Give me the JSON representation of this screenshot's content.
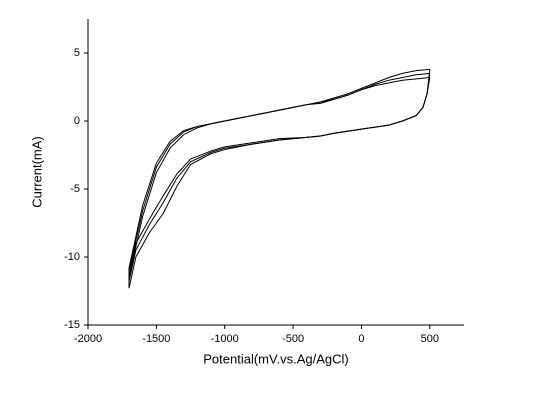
{
  "chart_data": {
    "type": "line",
    "xlabel": "Potential(mV.vs.Ag/AgCl)",
    "ylabel": "Current(mA)",
    "xlim": [
      -2000,
      750
    ],
    "xticks": [
      -2000,
      -1500,
      -1000,
      -500,
      0,
      500
    ],
    "ylim": [
      -15,
      7.5
    ],
    "yticks": [
      -15,
      -10,
      -5,
      0,
      5
    ],
    "series": [
      {
        "color": "#000000",
        "x": [
          500,
          400,
          300,
          200,
          100,
          0,
          -100,
          -200,
          -300,
          -400,
          -500,
          -600,
          -700,
          -800,
          -900,
          -1000,
          -1100,
          -1200,
          -1300,
          -1400,
          -1500,
          -1600,
          -1700,
          -1700,
          -1650,
          -1550,
          -1450,
          -1350,
          -1250,
          -1100,
          -1000,
          -800,
          -600,
          -400,
          -300,
          -200,
          0,
          200,
          300,
          400,
          450,
          480,
          500
        ],
        "values": [
          3.8,
          3.7,
          3.5,
          3.2,
          2.8,
          2.4,
          2.0,
          1.7,
          1.4,
          1.2,
          1.0,
          0.8,
          0.6,
          0.4,
          0.2,
          0.0,
          -0.2,
          -0.5,
          -1.0,
          -2.0,
          -3.8,
          -7.0,
          -11.5,
          -12.3,
          -10.0,
          -8.2,
          -6.8,
          -4.8,
          -3.2,
          -2.4,
          -2.1,
          -1.7,
          -1.4,
          -1.2,
          -1.1,
          -0.9,
          -0.6,
          -0.3,
          0.0,
          0.4,
          1.0,
          2.0,
          3.8
        ]
      },
      {
        "color": "#000000",
        "x": [
          500,
          400,
          300,
          200,
          100,
          0,
          -100,
          -200,
          -300,
          -400,
          -500,
          -600,
          -700,
          -800,
          -900,
          -1000,
          -1100,
          -1200,
          -1300,
          -1400,
          -1500,
          -1600,
          -1700,
          -1700,
          -1650,
          -1550,
          -1450,
          -1350,
          -1250,
          -1100,
          -1000,
          -800,
          -600,
          -400,
          -300,
          -200,
          0,
          200,
          300,
          400,
          450,
          480,
          500
        ],
        "values": [
          3.5,
          3.4,
          3.2,
          3.0,
          2.7,
          2.3,
          1.9,
          1.6,
          1.4,
          1.2,
          1.0,
          0.8,
          0.6,
          0.4,
          0.2,
          0.0,
          -0.2,
          -0.4,
          -0.8,
          -1.7,
          -3.4,
          -6.6,
          -11.0,
          -11.8,
          -9.5,
          -7.6,
          -6.0,
          -4.2,
          -3.0,
          -2.3,
          -2.0,
          -1.7,
          -1.4,
          -1.2,
          -1.1,
          -0.9,
          -0.6,
          -0.3,
          0.0,
          0.4,
          1.0,
          2.0,
          3.5
        ]
      },
      {
        "color": "#000000",
        "x": [
          500,
          400,
          300,
          200,
          100,
          0,
          -100,
          -200,
          -300,
          -400,
          -500,
          -600,
          -700,
          -800,
          -900,
          -1000,
          -1100,
          -1200,
          -1300,
          -1400,
          -1500,
          -1600,
          -1700,
          -1700,
          -1650,
          -1550,
          -1450,
          -1350,
          -1250,
          -1100,
          -1000,
          -800,
          -600,
          -400,
          -300,
          -200,
          0,
          200,
          300,
          400,
          450,
          480,
          500
        ],
        "values": [
          3.2,
          3.1,
          3.0,
          2.8,
          2.6,
          2.3,
          1.9,
          1.6,
          1.3,
          1.2,
          1.0,
          0.8,
          0.6,
          0.4,
          0.2,
          0.0,
          -0.2,
          -0.4,
          -0.7,
          -1.5,
          -3.1,
          -6.2,
          -10.8,
          -11.4,
          -9.0,
          -7.2,
          -5.5,
          -3.9,
          -2.8,
          -2.2,
          -1.9,
          -1.6,
          -1.3,
          -1.2,
          -1.1,
          -0.9,
          -0.6,
          -0.3,
          0.0,
          0.4,
          1.0,
          2.0,
          3.2
        ]
      }
    ]
  }
}
